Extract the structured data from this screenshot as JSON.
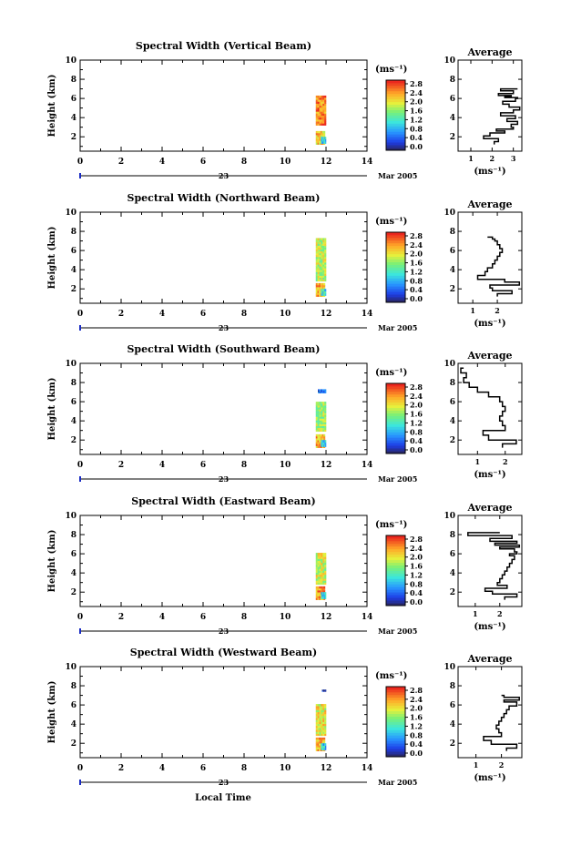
{
  "figure": {
    "xlabel": "Local Time",
    "date_label": "Mar 2005",
    "day_label": "23"
  },
  "chart_data": [
    {
      "type": "heatmap",
      "title": "Spectral Width (Vertical Beam)",
      "ylabel": "Height (km)",
      "xlim": [
        0,
        14
      ],
      "ylim": [
        0.5,
        10
      ],
      "xticks": [
        0,
        2,
        4,
        6,
        8,
        10,
        12,
        14
      ],
      "yticks": [
        2,
        4,
        6,
        8,
        10
      ],
      "colorbar": {
        "unit": "(ms⁻¹)",
        "ticks": [
          "0.0",
          "0.4",
          "0.8",
          "1.2",
          "1.6",
          "2.0",
          "2.4",
          "2.8"
        ],
        "range": [
          0,
          3
        ]
      },
      "data": {
        "time_range": [
          11.5,
          12.0
        ],
        "blocks": [
          {
            "t": [
              11.5,
              12.0
            ],
            "h": [
              3.2,
              6.3
            ],
            "w": 2.6
          },
          {
            "t": [
              11.5,
              11.95
            ],
            "h": [
              1.2,
              2.6
            ],
            "w": 2.3
          },
          {
            "t": [
              11.75,
              12.0
            ],
            "h": [
              1.3,
              2.0
            ],
            "w": 1.1
          }
        ]
      },
      "profile": {
        "title": "Average",
        "xlabel": "(ms⁻¹)",
        "xticks": [
          1,
          2,
          3
        ],
        "xlim": [
          0.4,
          3.4
        ],
        "ylim": [
          0.5,
          10
        ],
        "x": [
          2.1,
          2.3,
          1.6,
          1.9,
          2.6,
          2.2,
          3.0,
          2.9,
          3.2,
          2.7,
          3.1,
          2.4,
          3.0,
          3.3,
          2.8,
          2.5,
          3.1,
          3.2,
          2.6,
          2.9,
          2.3,
          3.0,
          2.4,
          3.2
        ],
        "y": [
          1.2,
          1.5,
          1.8,
          2.1,
          2.4,
          2.6,
          2.8,
          3.0,
          3.3,
          3.6,
          3.9,
          4.2,
          4.5,
          4.8,
          5.1,
          5.4,
          5.7,
          6.0,
          6.1,
          6.2,
          6.3,
          6.5,
          6.8,
          7.0
        ]
      }
    },
    {
      "type": "heatmap",
      "title": "Spectral Width (Northward Beam)",
      "ylabel": "Height (km)",
      "xlim": [
        0,
        14
      ],
      "ylim": [
        0.5,
        10
      ],
      "xticks": [
        0,
        2,
        4,
        6,
        8,
        10,
        12,
        14
      ],
      "yticks": [
        2,
        4,
        6,
        8,
        10
      ],
      "colorbar": {
        "unit": "(ms⁻¹)",
        "ticks": [
          "0.0",
          "0.4",
          "0.8",
          "1.2",
          "1.6",
          "2.0",
          "2.4",
          "2.8"
        ],
        "range": [
          0,
          3
        ]
      },
      "data": {
        "time_range": [
          11.5,
          12.0
        ],
        "blocks": [
          {
            "t": [
              11.5,
              12.0
            ],
            "h": [
              2.8,
              7.3
            ],
            "w": 1.9
          },
          {
            "t": [
              11.5,
              11.95
            ],
            "h": [
              1.2,
              2.6
            ],
            "w": 2.4
          },
          {
            "t": [
              11.75,
              12.0
            ],
            "h": [
              1.3,
              2.0
            ],
            "w": 1.2
          }
        ]
      },
      "profile": {
        "title": "Average",
        "xlabel": "(ms⁻¹)",
        "xticks": [
          1,
          2
        ],
        "xlim": [
          0.4,
          3.0
        ],
        "ylim": [
          0.5,
          10
        ],
        "x": [
          2.0,
          2.6,
          1.8,
          1.7,
          2.9,
          2.3,
          1.2,
          1.5,
          1.6,
          1.8,
          1.9,
          2.0,
          2.1,
          2.2,
          2.1,
          2.0,
          1.9,
          1.8,
          1.6
        ],
        "y": [
          1.2,
          1.5,
          1.8,
          2.1,
          2.4,
          2.7,
          3.0,
          3.4,
          3.8,
          4.2,
          4.6,
          5.0,
          5.4,
          5.8,
          6.2,
          6.6,
          7.0,
          7.2,
          7.4
        ]
      }
    },
    {
      "type": "heatmap",
      "title": "Spectral Width (Southward Beam)",
      "ylabel": "Height (km)",
      "xlim": [
        0,
        14
      ],
      "ylim": [
        0.5,
        10
      ],
      "xticks": [
        0,
        2,
        4,
        6,
        8,
        10,
        12,
        14
      ],
      "yticks": [
        2,
        4,
        6,
        8,
        10
      ],
      "colorbar": {
        "unit": "(ms⁻¹)",
        "ticks": [
          "0.0",
          "0.4",
          "0.8",
          "1.2",
          "1.6",
          "2.0",
          "2.4",
          "2.8"
        ],
        "range": [
          0,
          3
        ]
      },
      "data": {
        "time_range": [
          11.5,
          12.0
        ],
        "blocks": [
          {
            "t": [
              11.5,
              12.0
            ],
            "h": [
              2.9,
              6.0
            ],
            "w": 1.8
          },
          {
            "t": [
              11.5,
              11.95
            ],
            "h": [
              1.2,
              2.6
            ],
            "w": 2.4
          },
          {
            "t": [
              11.75,
              12.0
            ],
            "h": [
              1.3,
              2.0
            ],
            "w": 1.0
          },
          {
            "t": [
              11.6,
              12.0
            ],
            "h": [
              6.9,
              7.3
            ],
            "w": 0.5
          }
        ]
      },
      "profile": {
        "title": "Average",
        "xlabel": "(ms⁻¹)",
        "xticks": [
          1,
          2
        ],
        "xlim": [
          0.3,
          2.6
        ],
        "ylim": [
          0.5,
          10
        ],
        "x": [
          1.9,
          2.4,
          1.4,
          1.2,
          2.0,
          1.9,
          1.8,
          1.9,
          2.0,
          1.9,
          1.8,
          1.4,
          1.0,
          0.7,
          0.5,
          0.6,
          0.4,
          0.5
        ],
        "y": [
          1.2,
          1.6,
          2.0,
          2.5,
          3.0,
          3.5,
          4.0,
          4.5,
          5.0,
          5.5,
          6.0,
          6.5,
          7.0,
          7.5,
          8.0,
          8.5,
          9.0,
          9.5
        ]
      }
    },
    {
      "type": "heatmap",
      "title": "Spectral Width (Eastward Beam)",
      "ylabel": "Height (km)",
      "xlim": [
        0,
        14
      ],
      "ylim": [
        0.5,
        10
      ],
      "xticks": [
        0,
        2,
        4,
        6,
        8,
        10,
        12,
        14
      ],
      "yticks": [
        2,
        4,
        6,
        8,
        10
      ],
      "colorbar": {
        "unit": "(ms⁻¹)",
        "ticks": [
          "0.0",
          "0.4",
          "0.8",
          "1.2",
          "1.6",
          "2.0",
          "2.4",
          "2.8"
        ],
        "range": [
          0,
          3
        ]
      },
      "data": {
        "time_range": [
          11.5,
          12.0
        ],
        "blocks": [
          {
            "t": [
              11.5,
              12.0
            ],
            "h": [
              2.8,
              6.1
            ],
            "w": 2.0
          },
          {
            "t": [
              11.5,
              11.95
            ],
            "h": [
              1.2,
              2.6
            ],
            "w": 2.5
          },
          {
            "t": [
              11.75,
              12.0
            ],
            "h": [
              1.3,
              2.0
            ],
            "w": 1.1
          }
        ]
      },
      "profile": {
        "title": "Average",
        "xlabel": "(ms⁻¹)",
        "xticks": [
          1,
          2
        ],
        "xlim": [
          0.3,
          2.9
        ],
        "ylim": [
          0.5,
          10
        ],
        "x": [
          2.2,
          2.7,
          1.7,
          1.4,
          2.3,
          1.9,
          2.0,
          2.1,
          2.2,
          2.3,
          2.4,
          2.5,
          2.6,
          2.4,
          2.7,
          2.6,
          2.0,
          2.8,
          1.8,
          2.7,
          1.6,
          2.5,
          0.7,
          2.0
        ],
        "y": [
          1.2,
          1.5,
          1.8,
          2.1,
          2.4,
          2.7,
          3.0,
          3.4,
          3.8,
          4.2,
          4.6,
          5.0,
          5.4,
          5.8,
          6.0,
          6.2,
          6.5,
          6.7,
          6.9,
          7.1,
          7.3,
          7.6,
          7.9,
          8.2
        ]
      }
    },
    {
      "type": "heatmap",
      "title": "Spectral Width (Westward Beam)",
      "ylabel": "Height (km)",
      "xlim": [
        0,
        14
      ],
      "ylim": [
        0.5,
        10
      ],
      "xticks": [
        0,
        2,
        4,
        6,
        8,
        10,
        12,
        14
      ],
      "yticks": [
        2,
        4,
        6,
        8,
        10
      ],
      "colorbar": {
        "unit": "(ms⁻¹)",
        "ticks": [
          "0.0",
          "0.4",
          "0.8",
          "1.2",
          "1.6",
          "2.0",
          "2.4",
          "2.8"
        ],
        "range": [
          0,
          3
        ]
      },
      "data": {
        "time_range": [
          11.5,
          12.0
        ],
        "blocks": [
          {
            "t": [
              11.5,
              12.0
            ],
            "h": [
              2.8,
              6.1
            ],
            "w": 2.1
          },
          {
            "t": [
              11.5,
              11.95
            ],
            "h": [
              1.2,
              2.6
            ],
            "w": 2.4
          },
          {
            "t": [
              11.75,
              12.0
            ],
            "h": [
              1.3,
              2.0
            ],
            "w": 1.0
          },
          {
            "t": [
              11.8,
              12.0
            ],
            "h": [
              7.4,
              7.6
            ],
            "w": 0.2
          }
        ]
      },
      "profile": {
        "title": "Average",
        "xlabel": "(ms⁻¹)",
        "xticks": [
          1,
          2
        ],
        "xlim": [
          0.3,
          2.8
        ],
        "ylim": [
          0.5,
          10
        ],
        "x": [
          2.2,
          2.6,
          1.6,
          1.3,
          2.0,
          1.9,
          1.8,
          1.9,
          2.0,
          2.1,
          2.2,
          2.3,
          2.6,
          2.1,
          2.7,
          2.1,
          2.0
        ],
        "y": [
          1.2,
          1.5,
          1.9,
          2.3,
          2.7,
          3.1,
          3.5,
          3.9,
          4.3,
          4.7,
          5.1,
          5.5,
          5.9,
          6.3,
          6.5,
          6.8,
          7.0
        ]
      }
    }
  ]
}
